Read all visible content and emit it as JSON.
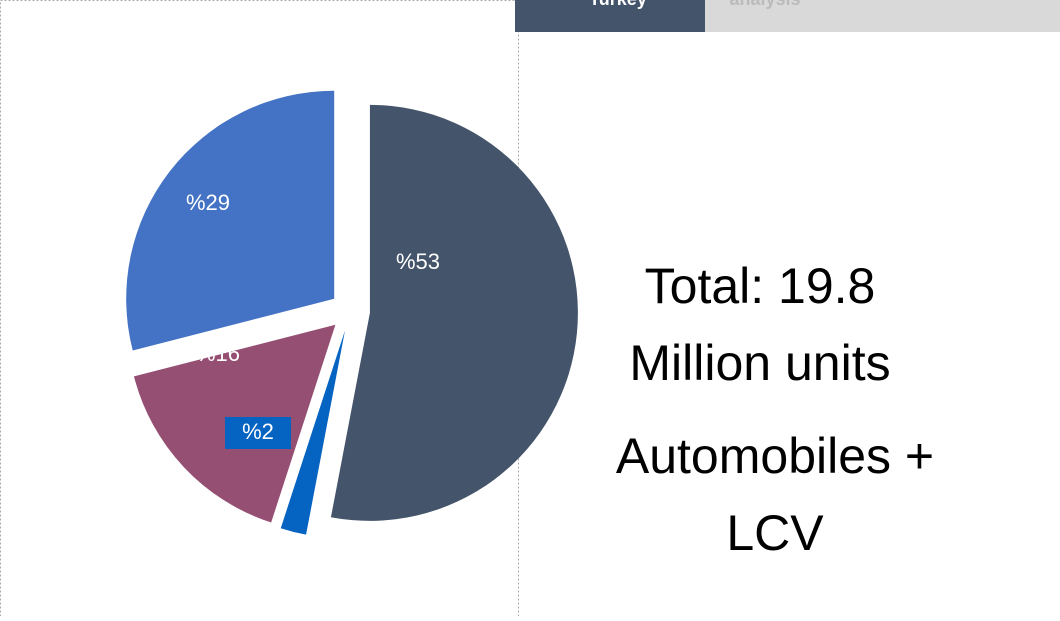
{
  "tabs": [
    "Turkey",
    "analysis"
  ],
  "chart_data": {
    "type": "pie",
    "values": [
      53,
      2,
      16,
      29
    ],
    "value_labels": [
      "%53",
      "%2",
      "%16",
      "%29"
    ],
    "colors": [
      "#44546a",
      "#0563c1",
      "#954f72",
      "#4472c4"
    ],
    "annotations": [
      "Total: 19.8",
      "Million units",
      "Automobiles +",
      "LCV"
    ]
  }
}
